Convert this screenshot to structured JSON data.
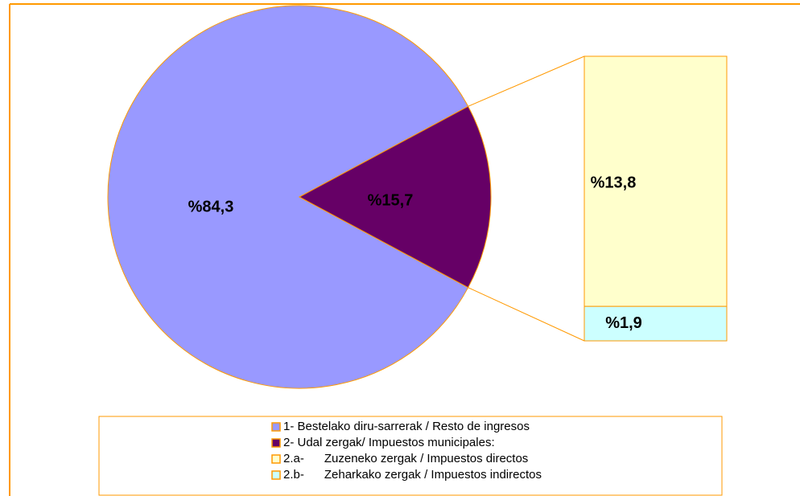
{
  "chart_data": {
    "type": "pie",
    "categories": [
      "1- Bestelako diru-sarrerak / Resto de ingresos",
      "2- Udal zergak/ Impuestos municipales:"
    ],
    "values": [
      84.3,
      15.7
    ],
    "value_labels": [
      "%84,3",
      "%15,7"
    ],
    "colors": [
      "#9999ff",
      "#660066"
    ],
    "breakdown": {
      "type": "bar",
      "categories": [
        "2.a-      Zuzeneko zergak / Impuestos directos",
        "2.b-      Zeharkako zergak / Impuestos indirectos"
      ],
      "values": [
        13.8,
        1.9
      ],
      "value_labels": [
        "%13,8",
        "%1,9"
      ],
      "colors": [
        "#ffffcc",
        "#ccffff"
      ]
    }
  }
}
